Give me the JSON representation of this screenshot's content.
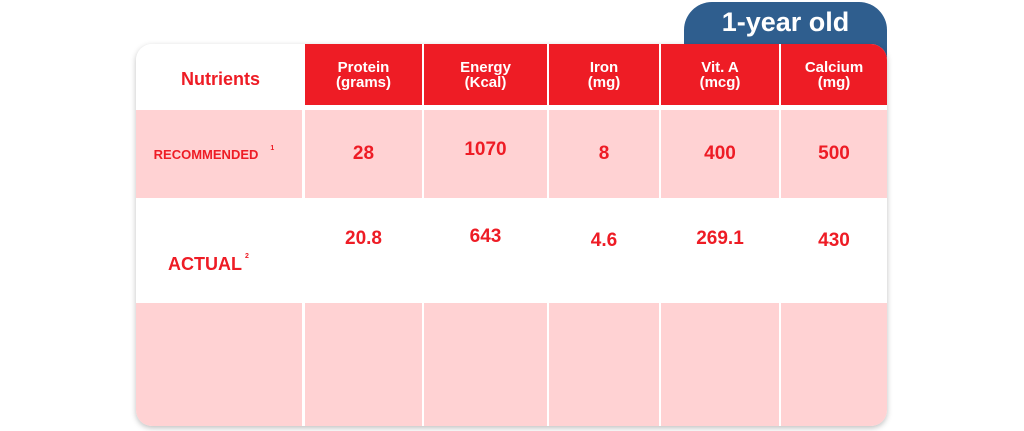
{
  "badge": "1-year old",
  "header": {
    "nutrients": "Nutrients",
    "columns": [
      {
        "name": "Protein",
        "unit": "(grams)"
      },
      {
        "name": "Energy",
        "unit": "(Kcal)"
      },
      {
        "name": "Iron",
        "unit": "(mg)"
      },
      {
        "name": "Vit. A",
        "unit": "(mcg)"
      },
      {
        "name": "Calcium",
        "unit": "(mg)"
      }
    ]
  },
  "rows": {
    "recommended": {
      "label": "RECOMMENDED",
      "note": "1",
      "values": [
        "28",
        "1070",
        "8",
        "400",
        "500"
      ]
    },
    "actual": {
      "label": "ACTUAL",
      "note": "2",
      "values": [
        "20.8",
        "643",
        "4.6",
        "269.1",
        "430"
      ]
    }
  },
  "colors": {
    "accent": "#ee1c25",
    "badge": "#2f5e8e",
    "pink": "#ffd2d3"
  }
}
